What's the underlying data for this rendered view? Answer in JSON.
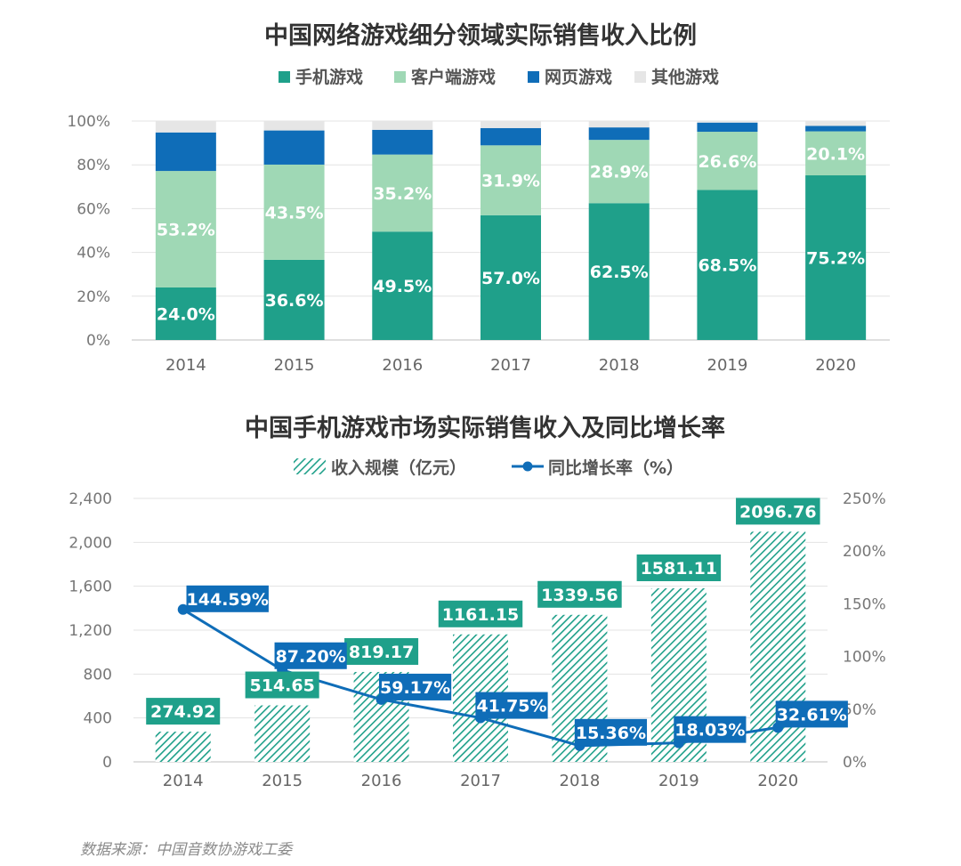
{
  "chart_data": [
    {
      "type": "bar",
      "stacked": true,
      "percent": true,
      "title": "中国网络游戏细分领域实际销售收入比例",
      "categories": [
        "2014",
        "2015",
        "2016",
        "2017",
        "2018",
        "2019",
        "2020"
      ],
      "ylim": [
        0,
        100
      ],
      "yticks": [
        "0%",
        "20%",
        "40%",
        "60%",
        "80%",
        "100%"
      ],
      "legend_position": "top",
      "series": [
        {
          "name": "手机游戏",
          "color": "#1fa08a",
          "values": [
            24.0,
            36.6,
            49.5,
            57.0,
            62.5,
            68.5,
            75.2
          ],
          "labels": [
            "24.0%",
            "36.6%",
            "49.5%",
            "57.0%",
            "62.5%",
            "68.5%",
            "75.2%"
          ]
        },
        {
          "name": "客户端游戏",
          "color": "#9fd8b5",
          "values": [
            53.2,
            43.5,
            35.2,
            31.9,
            28.9,
            26.6,
            20.1
          ],
          "labels": [
            "53.2%",
            "43.5%",
            "35.2%",
            "31.9%",
            "28.9%",
            "26.6%",
            "20.1%"
          ]
        },
        {
          "name": "网页游戏",
          "color": "#0f6db8",
          "values": [
            17.6,
            15.6,
            11.3,
            7.9,
            5.7,
            4.2,
            2.5
          ]
        },
        {
          "name": "其他游戏",
          "color": "#e6e6e6",
          "values": [
            5.2,
            4.3,
            4.0,
            3.2,
            2.9,
            0.7,
            2.2
          ]
        }
      ]
    },
    {
      "type": "bar+line",
      "title": "中国手机游戏市场实际销售收入及同比增长率",
      "categories": [
        "2014",
        "2015",
        "2016",
        "2017",
        "2018",
        "2019",
        "2020"
      ],
      "legend_position": "top",
      "bar_series": {
        "name": "收入规模（亿元）",
        "color": "#1fa08a",
        "values": [
          274.92,
          514.65,
          819.17,
          1161.15,
          1339.56,
          1581.11,
          2096.76
        ],
        "labels": [
          "274.92",
          "514.65",
          "819.17",
          "1161.15",
          "1339.56",
          "1581.11",
          "2096.76"
        ]
      },
      "line_series": {
        "name": "同比增长率（%）",
        "color": "#0f6db8",
        "values": [
          144.59,
          87.2,
          59.17,
          41.75,
          15.36,
          18.03,
          32.61
        ],
        "labels": [
          "144.59%",
          "87.20%",
          "59.17%",
          "41.75%",
          "15.36%",
          "18.03%",
          "32.61%"
        ]
      },
      "ylim_left": [
        0,
        2400
      ],
      "yticks_left": [
        "0",
        "400",
        "800",
        "1,200",
        "1,600",
        "2,000",
        "2,400"
      ],
      "ylim_right": [
        0,
        250
      ],
      "yticks_right": [
        "0%",
        "50%",
        "100%",
        "150%",
        "200%",
        "250%"
      ]
    }
  ],
  "source": "数据来源：中国音数协游戏工委"
}
